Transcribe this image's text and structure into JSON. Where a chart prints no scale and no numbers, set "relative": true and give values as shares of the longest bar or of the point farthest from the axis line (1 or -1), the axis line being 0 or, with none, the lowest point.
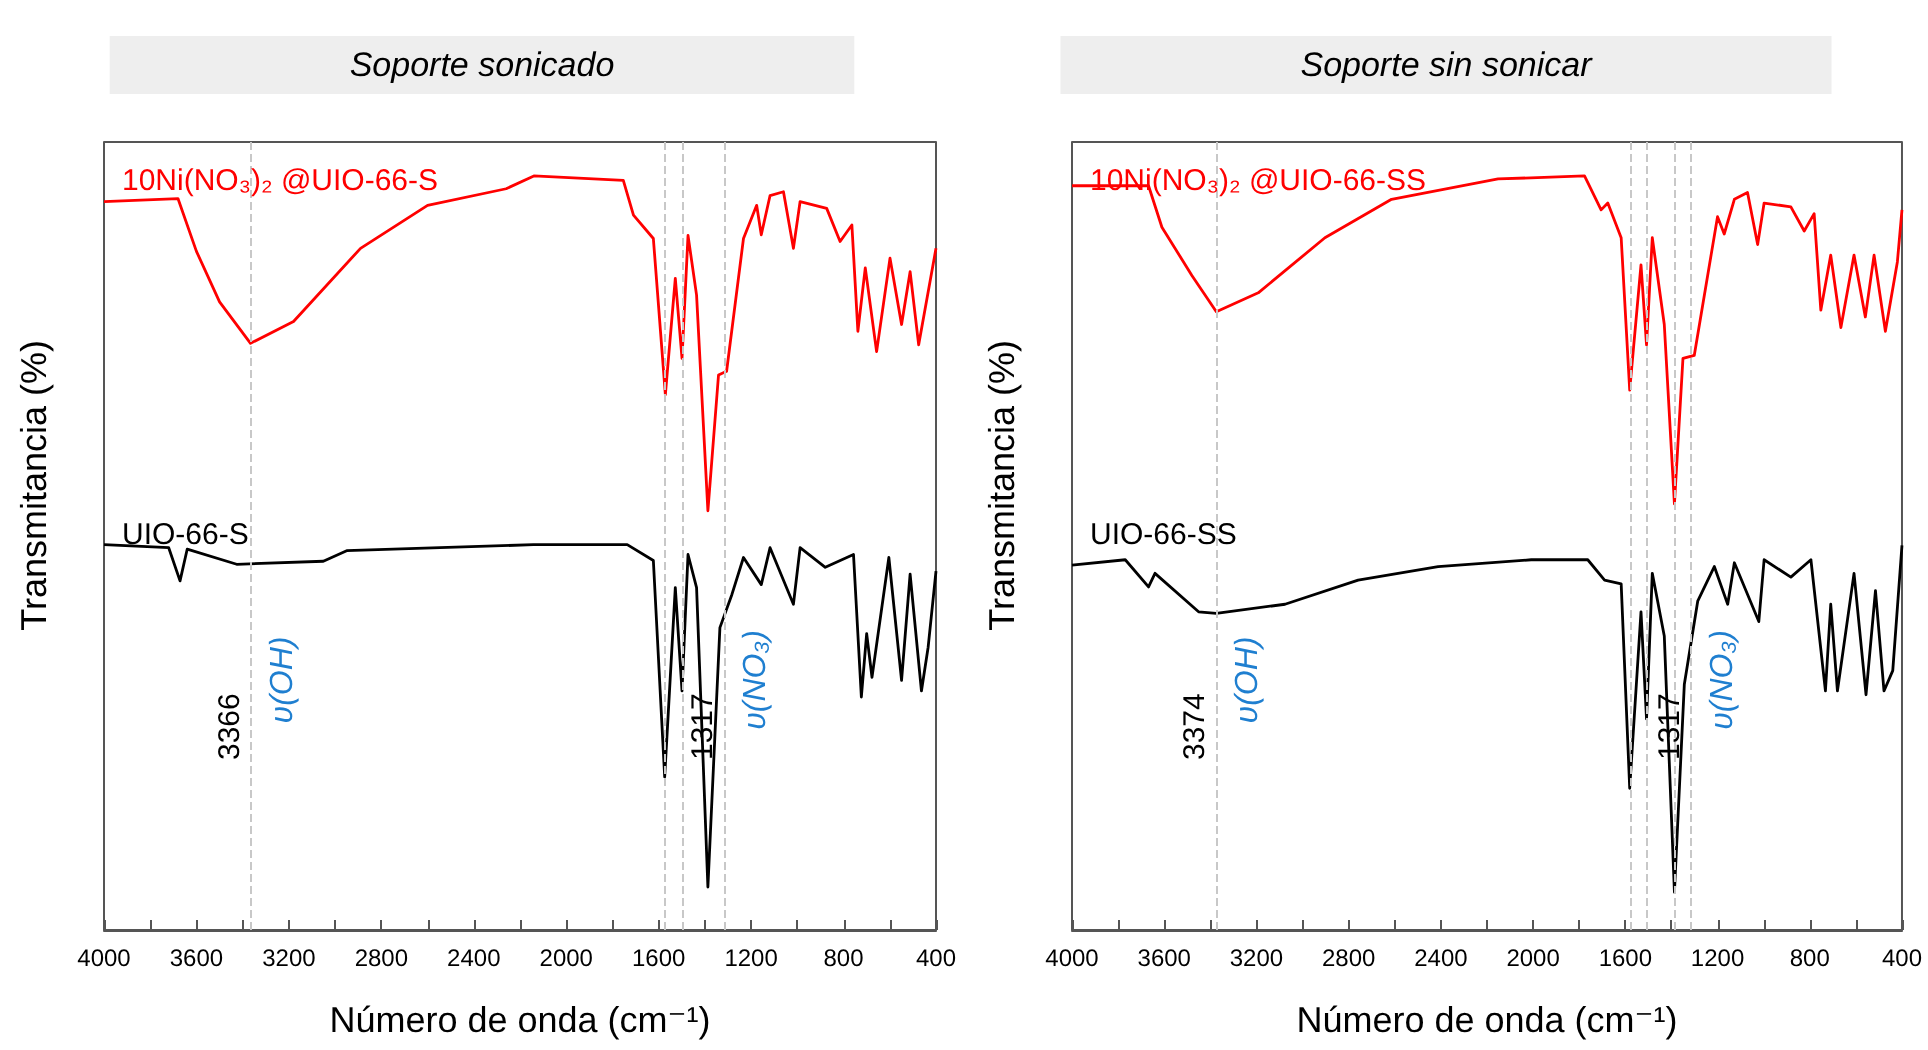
{
  "chart_data": [
    {
      "type": "line",
      "title": "Soporte sonicado",
      "xlabel": "Número de onda (cm⁻¹)",
      "ylabel": "Transmitancia (%)",
      "relative": true,
      "marker": "none",
      "legend": false,
      "grid": false,
      "xlim": [
        4000,
        400
      ],
      "xticks": [
        4000,
        {
          "value": 3800,
          "label": null
        },
        3600,
        {
          "value": 3400,
          "label": null
        },
        3200,
        {
          "value": 3000,
          "label": null
        },
        2800,
        {
          "value": 2600,
          "label": null
        },
        2400,
        {
          "value": 2200,
          "label": null
        },
        2000,
        {
          "value": 1800,
          "label": null
        },
        1600,
        {
          "value": 1400,
          "label": null
        },
        1200,
        {
          "value": 1000,
          "label": null
        },
        800,
        {
          "value": 600,
          "label": null
        },
        400
      ],
      "series": [
        {
          "name": "10Ni(NO₃)₂ @UIO-66-S",
          "color": "#ff0000",
          "x": [
            4000,
            3680,
            3600,
            3500,
            3366,
            3180,
            2890,
            2600,
            2260,
            2140,
            1753,
            1709,
            1623,
            1571,
            1528,
            1499,
            1473,
            1436,
            1387,
            1341,
            1306,
            1233,
            1176,
            1156,
            1118,
            1060,
            1017,
            988,
            873,
            815,
            764,
            738,
            706,
            657,
            599,
            549,
            512,
            475,
            400
          ],
          "values": [
            0.966,
            0.97,
            0.9,
            0.833,
            0.778,
            0.807,
            0.904,
            0.961,
            0.983,
            1.0,
            0.994,
            0.948,
            0.917,
            0.71,
            0.864,
            0.758,
            0.921,
            0.842,
            0.556,
            0.736,
            0.741,
            0.917,
            0.961,
            0.922,
            0.974,
            0.979,
            0.904,
            0.966,
            0.957,
            0.913,
            0.935,
            0.794,
            0.878,
            0.767,
            0.891,
            0.803,
            0.873,
            0.776,
            0.904
          ]
        },
        {
          "name": "UIO-66-S",
          "color": "#000000",
          "x": [
            4000,
            3720,
            3671,
            3640,
            3426,
            3051,
            2950,
            2142,
            1736,
            1623,
            1574,
            1528,
            1499,
            1473,
            1436,
            1387,
            1335,
            1283,
            1233,
            1156,
            1118,
            1017,
            988,
            879,
            757,
            723,
            700,
            677,
            604,
            549,
            512,
            463,
            434,
            400
          ],
          "values": [
            0.511,
            0.507,
            0.463,
            0.505,
            0.485,
            0.489,
            0.503,
            0.511,
            0.511,
            0.49,
            0.203,
            0.454,
            0.317,
            0.498,
            0.454,
            0.057,
            0.401,
            0.445,
            0.494,
            0.458,
            0.507,
            0.432,
            0.507,
            0.481,
            0.498,
            0.309,
            0.393,
            0.335,
            0.494,
            0.331,
            0.472,
            0.317,
            0.375,
            0.476
          ]
        }
      ],
      "ref_lines": [
        {
          "axis": "x",
          "value": 3366,
          "label": "3366"
        },
        {
          "axis": "x",
          "value": 1571,
          "label": null
        },
        {
          "axis": "x",
          "value": 1499,
          "label": null
        },
        {
          "axis": "x",
          "value": 1317,
          "label": "1317"
        }
      ],
      "annotations": [
        "υ(OH)",
        "υ(NO₃)"
      ]
    },
    {
      "type": "line",
      "title": "Soporte sin sonicar",
      "xlabel": "Número de onda (cm⁻¹)",
      "ylabel": "Transmitancia (%)",
      "relative": true,
      "marker": "none",
      "legend": false,
      "grid": false,
      "xlim": [
        4000,
        400
      ],
      "xticks": [
        4000,
        {
          "value": 3800,
          "label": null
        },
        3600,
        {
          "value": 3400,
          "label": null
        },
        3200,
        {
          "value": 3000,
          "label": null
        },
        2800,
        {
          "value": 2600,
          "label": null
        },
        2400,
        {
          "value": 2200,
          "label": null
        },
        2000,
        {
          "value": 1800,
          "label": null
        },
        1600,
        {
          "value": 1400,
          "label": null
        },
        1200,
        {
          "value": 1000,
          "label": null
        },
        800,
        {
          "value": 600,
          "label": null
        },
        400
      ],
      "series": [
        {
          "name": "10Ni(NO₃)₂ @UIO-66-SS",
          "color": "#ff0000",
          "x": [
            4000,
            3668,
            3610,
            3480,
            3374,
            3192,
            2903,
            2614,
            2152,
            1777,
            1705,
            1676,
            1618,
            1581,
            1532,
            1508,
            1483,
            1431,
            1387,
            1350,
            1301,
            1200,
            1171,
            1127,
            1070,
            1026,
            998,
            882,
            824,
            781,
            752,
            709,
            665,
            608,
            559,
            521,
            472,
            420,
            400
          ],
          "values": [
            0.987,
            0.987,
            0.932,
            0.868,
            0.82,
            0.845,
            0.918,
            0.969,
            0.996,
            1.0,
            0.955,
            0.964,
            0.918,
            0.716,
            0.882,
            0.776,
            0.918,
            0.803,
            0.565,
            0.758,
            0.762,
            0.946,
            0.923,
            0.969,
            0.978,
            0.909,
            0.964,
            0.959,
            0.927,
            0.95,
            0.822,
            0.895,
            0.799,
            0.895,
            0.813,
            0.895,
            0.794,
            0.886,
            0.955
          ]
        },
        {
          "name": "UIO-66-SS",
          "color": "#000000",
          "x": [
            4000,
            3769,
            3668,
            3640,
            3451,
            3374,
            3076,
            2759,
            2412,
            2008,
            1763,
            1690,
            1618,
            1581,
            1532,
            1508,
            1483,
            1431,
            1387,
            1344,
            1286,
            1214,
            1156,
            1127,
            1021,
            998,
            882,
            795,
            732,
            709,
            680,
            608,
            556,
            515,
            478,
            440,
            400
          ],
          "values": [
            0.484,
            0.491,
            0.455,
            0.473,
            0.422,
            0.42,
            0.432,
            0.464,
            0.482,
            0.491,
            0.491,
            0.464,
            0.459,
            0.188,
            0.422,
            0.28,
            0.473,
            0.39,
            0.05,
            0.326,
            0.436,
            0.482,
            0.432,
            0.487,
            0.409,
            0.491,
            0.468,
            0.491,
            0.317,
            0.432,
            0.317,
            0.473,
            0.312,
            0.45,
            0.317,
            0.344,
            0.51
          ]
        }
      ],
      "ref_lines": [
        {
          "axis": "x",
          "value": 3374,
          "label": "3374"
        },
        {
          "axis": "x",
          "value": 1581,
          "label": null
        },
        {
          "axis": "x",
          "value": 1508,
          "label": null
        },
        {
          "axis": "x",
          "value": 1387,
          "label": null
        },
        {
          "axis": "x",
          "value": 1317,
          "label": "1317"
        }
      ],
      "annotations": [
        "υ(OH)",
        "υ(NO₃)"
      ]
    }
  ]
}
